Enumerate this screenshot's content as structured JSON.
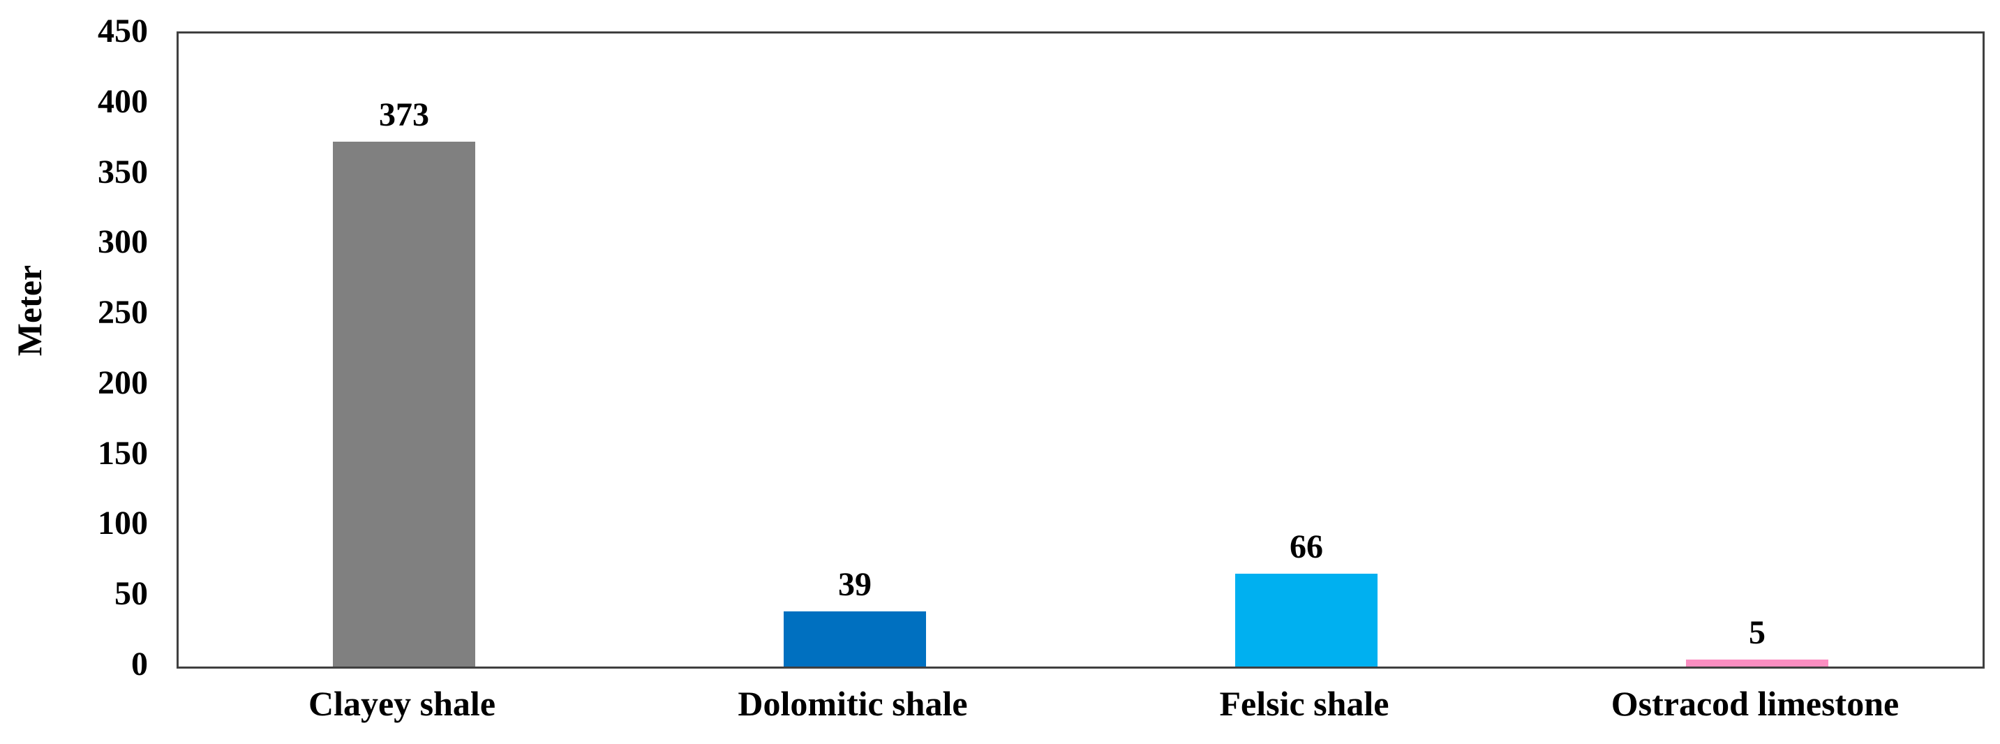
{
  "chart_data": {
    "type": "bar",
    "title": "",
    "xlabel": "",
    "ylabel": "Meter",
    "categories": [
      "Clayey shale",
      "Dolomitic shale",
      "Felsic shale",
      "Ostracod limestone"
    ],
    "values": [
      373,
      39,
      66,
      5
    ],
    "data_labels": [
      "373",
      "39",
      "66",
      "5"
    ],
    "bar_colors": [
      "#808080",
      "#0070C0",
      "#00B0F0",
      "#FA8EC1"
    ],
    "ylim": [
      0,
      450
    ],
    "yticks": [
      0,
      50,
      100,
      150,
      200,
      250,
      300,
      350,
      400,
      450
    ],
    "grid": false,
    "legend": "none",
    "axis_color": "#404040",
    "text_color": "#000000",
    "background_color": "#FFFFFF"
  }
}
